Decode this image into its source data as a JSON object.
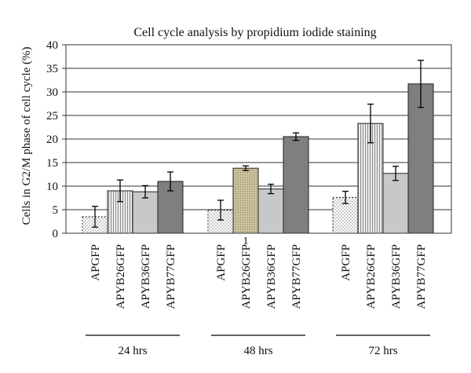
{
  "chart_data": {
    "type": "bar",
    "title": "Cell cycle analysis by propidium iodide staining",
    "ylabel": "Cells in G2/M phase of cell cycle (%)",
    "xlabel": "",
    "ylim": [
      0,
      40
    ],
    "yticks": [
      0,
      5,
      10,
      15,
      20,
      25,
      30,
      35,
      40
    ],
    "grid": true,
    "annotation": "1",
    "groups": [
      {
        "label": "24 hrs",
        "bars": [
          {
            "category": "APGFP",
            "value": 3.5,
            "error": 2.2,
            "fill": "dots"
          },
          {
            "category": "APYB26GFP",
            "value": 9.0,
            "error": 2.3,
            "fill": "vstripes"
          },
          {
            "category": "APYB36GFP",
            "value": 8.8,
            "error": 1.3,
            "fill": "#c8c8c8"
          },
          {
            "category": "APYB77GFP",
            "value": 11.0,
            "error": 2.0,
            "fill": "#7f7f7f"
          }
        ]
      },
      {
        "label": "48 hrs",
        "bars": [
          {
            "category": "APGFP",
            "value": 4.9,
            "error": 2.1,
            "fill": "dots"
          },
          {
            "category": "APYB26GFP",
            "value": 13.8,
            "error": 0.5,
            "fill": "tan"
          },
          {
            "category": "APYB36GFP",
            "value": 9.4,
            "error": 1.0,
            "fill": "#c8c8c8"
          },
          {
            "category": "APYB77GFP",
            "value": 20.5,
            "error": 0.8,
            "fill": "#7f7f7f"
          }
        ]
      },
      {
        "label": "72 hrs",
        "bars": [
          {
            "category": "APGFP",
            "value": 7.6,
            "error": 1.3,
            "fill": "dots"
          },
          {
            "category": "APYB26GFP",
            "value": 23.3,
            "error": 4.1,
            "fill": "vstripes"
          },
          {
            "category": "APYB36GFP",
            "value": 12.7,
            "error": 1.5,
            "fill": "#c8c8c8"
          },
          {
            "category": "APYB77GFP",
            "value": 31.7,
            "error": 5.0,
            "fill": "#7f7f7f"
          }
        ]
      }
    ]
  }
}
